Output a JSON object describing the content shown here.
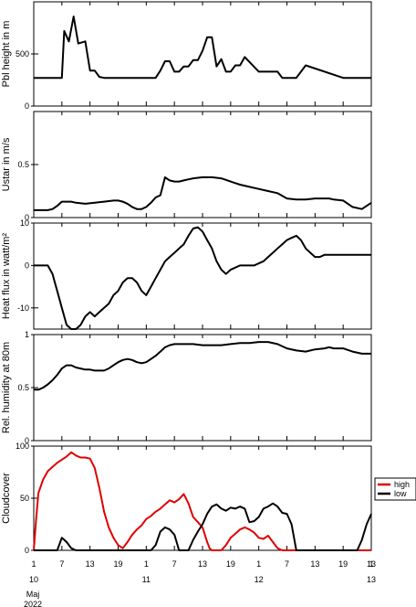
{
  "colors": {
    "black": "#000000",
    "red": "#e00000"
  },
  "x_axis": {
    "ticks": [
      {
        "t": 1,
        "label": "1"
      },
      {
        "t": 7,
        "label": "7"
      },
      {
        "t": 13,
        "label": "13"
      },
      {
        "t": 19,
        "label": "19"
      },
      {
        "t": 25,
        "label": "1"
      },
      {
        "t": 31,
        "label": "7"
      },
      {
        "t": 37,
        "label": "13"
      },
      {
        "t": 43,
        "label": "19"
      },
      {
        "t": 49,
        "label": "1"
      },
      {
        "t": 55,
        "label": "7"
      },
      {
        "t": 61,
        "label": "13"
      },
      {
        "t": 67,
        "label": "19"
      },
      {
        "t": 73,
        "label": "1"
      },
      {
        "t": 79,
        "label": "13"
      }
    ],
    "date_labels": [
      {
        "t": 1,
        "label": "10"
      },
      {
        "t": 25,
        "label": "11"
      },
      {
        "t": 49,
        "label": "12"
      },
      {
        "t": 79,
        "label": "13"
      }
    ],
    "month": "Maj",
    "year": "2022"
  },
  "chart_data": [
    {
      "type": "line",
      "ylabel": "Pbl height in m",
      "ylim": [
        0,
        1000
      ],
      "yticks": [
        0,
        500
      ],
      "series": [
        {
          "color": "#000000",
          "x": [
            1,
            7,
            7.5,
            8.5,
            9.5,
            10.5,
            12,
            13,
            13.5,
            14,
            15,
            16,
            19,
            24,
            26,
            27,
            28,
            29,
            30,
            31,
            32,
            33,
            34,
            35,
            36,
            37,
            38,
            39,
            40,
            41,
            42,
            43,
            44,
            45,
            46,
            49,
            52,
            53,
            54,
            55,
            56,
            57,
            59,
            67,
            73
          ],
          "y": [
            270,
            270,
            720,
            620,
            860,
            600,
            620,
            340,
            340,
            340,
            280,
            270,
            270,
            270,
            270,
            270,
            340,
            430,
            430,
            330,
            330,
            380,
            380,
            440,
            440,
            530,
            660,
            660,
            380,
            450,
            330,
            330,
            390,
            390,
            470,
            330,
            330,
            330,
            270,
            270,
            270,
            270,
            390,
            270,
            270
          ]
        }
      ]
    },
    {
      "type": "line",
      "ylabel": "Ustar in m/s",
      "ylim": [
        0,
        1
      ],
      "yticks": [
        0,
        0.5
      ],
      "series": [
        {
          "color": "#000000",
          "x": [
            1,
            2,
            4,
            5,
            6,
            7,
            9,
            10,
            12,
            14,
            16,
            18,
            19,
            20,
            21,
            22,
            23,
            24,
            25,
            26,
            27,
            28,
            29,
            30,
            31,
            32,
            33,
            34,
            35,
            37,
            39,
            41,
            43,
            45,
            47,
            49,
            51,
            53,
            55,
            57,
            59,
            61,
            63,
            64,
            65,
            67,
            69,
            71,
            73
          ],
          "y": [
            0.07,
            0.07,
            0.07,
            0.08,
            0.11,
            0.15,
            0.15,
            0.14,
            0.13,
            0.14,
            0.15,
            0.16,
            0.16,
            0.15,
            0.13,
            0.1,
            0.08,
            0.08,
            0.1,
            0.14,
            0.19,
            0.21,
            0.38,
            0.35,
            0.34,
            0.34,
            0.35,
            0.36,
            0.37,
            0.38,
            0.38,
            0.37,
            0.34,
            0.31,
            0.29,
            0.27,
            0.25,
            0.23,
            0.18,
            0.17,
            0.17,
            0.18,
            0.18,
            0.18,
            0.17,
            0.16,
            0.1,
            0.08,
            0.14
          ]
        }
      ]
    },
    {
      "type": "line",
      "ylabel": "Heat flux in watt/m²",
      "ylim": [
        -15,
        10
      ],
      "yticks": [
        -10,
        0,
        10
      ],
      "series": [
        {
          "color": "#000000",
          "x": [
            1,
            2,
            3,
            4,
            5,
            5.5,
            6,
            7,
            8,
            9,
            10,
            11,
            12,
            13,
            14,
            15,
            16,
            17,
            18,
            19,
            20,
            21,
            22,
            23,
            24,
            25,
            26,
            27,
            28,
            29,
            30,
            31,
            32,
            33,
            34,
            35,
            36,
            37,
            38,
            39,
            40,
            41,
            42,
            43,
            44,
            45,
            46,
            47,
            48,
            49,
            50,
            51,
            52,
            53,
            54,
            55,
            56,
            57,
            58,
            59,
            60,
            61,
            62,
            63,
            64,
            65,
            66,
            67,
            68,
            69,
            70,
            71,
            72,
            73
          ],
          "y": [
            0,
            0,
            0,
            0,
            -2,
            -4,
            -6,
            -10,
            -14,
            -15,
            -15,
            -14,
            -12,
            -11,
            -12,
            -11,
            -10,
            -9,
            -7,
            -6,
            -4,
            -3,
            -3,
            -4,
            -6,
            -7,
            -5,
            -3,
            -1,
            1,
            2,
            3,
            4,
            5,
            7,
            8.7,
            9,
            8,
            6,
            4,
            1,
            -1,
            -2,
            -1,
            -0.5,
            0,
            0,
            0,
            0,
            0.5,
            1,
            2,
            3,
            4,
            5,
            6,
            6.5,
            7,
            6,
            4,
            3,
            2,
            2,
            2.5,
            2.5,
            2.5,
            2.5,
            2.5,
            2.5,
            2.5,
            2.5,
            2.5,
            2.5,
            2.5
          ],
          "note": "placeholder"
        }
      ]
    },
    {
      "type": "line",
      "ylabel": "Rel. humidity at 80m",
      "ylim": [
        0,
        1
      ],
      "yticks": [
        0,
        0.5,
        1
      ],
      "series": [
        {
          "color": "#000000",
          "x": [
            1,
            2,
            3,
            4,
            5,
            6,
            7,
            8,
            9,
            10,
            11,
            12,
            13,
            14,
            15,
            16,
            17,
            18,
            19,
            20,
            21,
            22,
            23,
            24,
            25,
            26,
            27,
            28,
            29,
            30,
            31,
            32,
            33,
            34,
            35,
            37,
            39,
            41,
            43,
            45,
            47,
            49,
            51,
            53,
            55,
            57,
            59,
            61,
            63,
            64,
            65,
            67,
            69,
            71,
            73
          ],
          "y": [
            0.48,
            0.48,
            0.5,
            0.53,
            0.57,
            0.62,
            0.68,
            0.71,
            0.71,
            0.69,
            0.68,
            0.67,
            0.67,
            0.66,
            0.66,
            0.66,
            0.68,
            0.71,
            0.74,
            0.76,
            0.77,
            0.76,
            0.74,
            0.73,
            0.74,
            0.77,
            0.8,
            0.84,
            0.88,
            0.9,
            0.91,
            0.91,
            0.91,
            0.91,
            0.91,
            0.9,
            0.9,
            0.9,
            0.91,
            0.92,
            0.92,
            0.93,
            0.93,
            0.91,
            0.87,
            0.85,
            0.84,
            0.86,
            0.87,
            0.88,
            0.87,
            0.87,
            0.84,
            0.82,
            0.82
          ]
        }
      ]
    },
    {
      "type": "line",
      "ylabel": "Cloudcover",
      "ylim": [
        0,
        100
      ],
      "yticks": [
        0,
        50,
        100
      ],
      "legend": [
        {
          "label": "high",
          "color": "#e00000"
        },
        {
          "label": "low",
          "color": "#000000"
        }
      ],
      "series": [
        {
          "name": "high",
          "color": "#e00000",
          "x": [
            1,
            1.5,
            2,
            3,
            4,
            5,
            6,
            7,
            8,
            9,
            10,
            11,
            12,
            13,
            14,
            15,
            16,
            17,
            18,
            19,
            20,
            21,
            22,
            23,
            24,
            25,
            26,
            27,
            28,
            29,
            30,
            31,
            32,
            33,
            34,
            35,
            36,
            37,
            38,
            38.5,
            39,
            40,
            41,
            42,
            43,
            44,
            45,
            46,
            47,
            48,
            49,
            50,
            51,
            52,
            53,
            54,
            55,
            56,
            57,
            58,
            59,
            60,
            61,
            62,
            63,
            64,
            65,
            66,
            67,
            68,
            69,
            70,
            71,
            72,
            73
          ],
          "y": [
            0,
            30,
            55,
            68,
            76,
            80,
            84,
            87,
            90,
            94,
            91,
            89,
            89,
            88,
            79,
            60,
            37,
            22,
            12,
            5,
            2,
            8,
            15,
            20,
            24,
            30,
            33,
            37,
            40,
            44,
            48,
            46,
            49,
            54,
            45,
            32,
            27,
            22,
            8,
            2,
            0,
            0,
            0,
            5,
            12,
            16,
            20,
            22,
            20,
            17,
            12,
            11,
            14,
            8,
            2,
            0,
            0,
            0,
            0,
            0,
            0,
            0,
            0,
            0,
            0,
            0,
            0,
            0,
            0,
            0,
            0,
            0,
            0,
            0,
            0
          ]
        },
        {
          "name": "low",
          "color": "#000000",
          "x": [
            1,
            2,
            3,
            4,
            5,
            6,
            7,
            8,
            9,
            10,
            11,
            12,
            13,
            14,
            15,
            16,
            17,
            18,
            19,
            20,
            21,
            22,
            23,
            24,
            25,
            26,
            27,
            28,
            29,
            30,
            31,
            32,
            33,
            34,
            35,
            36,
            37,
            38,
            39,
            40,
            41,
            42,
            43,
            44,
            45,
            46,
            47,
            48,
            49,
            50,
            51,
            52,
            53,
            54,
            55,
            56,
            57,
            58,
            59,
            60,
            61,
            62,
            63,
            64,
            65,
            66,
            67,
            68,
            69,
            70,
            71,
            72,
            73
          ],
          "y": [
            0,
            0,
            0,
            0,
            0,
            0,
            12,
            8,
            2,
            0,
            0,
            0,
            0,
            0,
            0,
            0,
            0,
            0,
            0,
            0,
            0,
            0,
            0,
            0,
            0,
            0,
            5,
            18,
            22,
            20,
            15,
            0,
            0,
            0,
            10,
            18,
            25,
            35,
            42,
            44,
            40,
            38,
            41,
            40,
            42,
            40,
            27,
            28,
            32,
            40,
            42,
            45,
            42,
            36,
            35,
            25,
            0,
            0,
            0,
            0,
            0,
            0,
            0,
            0,
            0,
            0,
            0,
            0,
            0,
            0,
            10,
            25,
            35
          ]
        }
      ]
    }
  ]
}
